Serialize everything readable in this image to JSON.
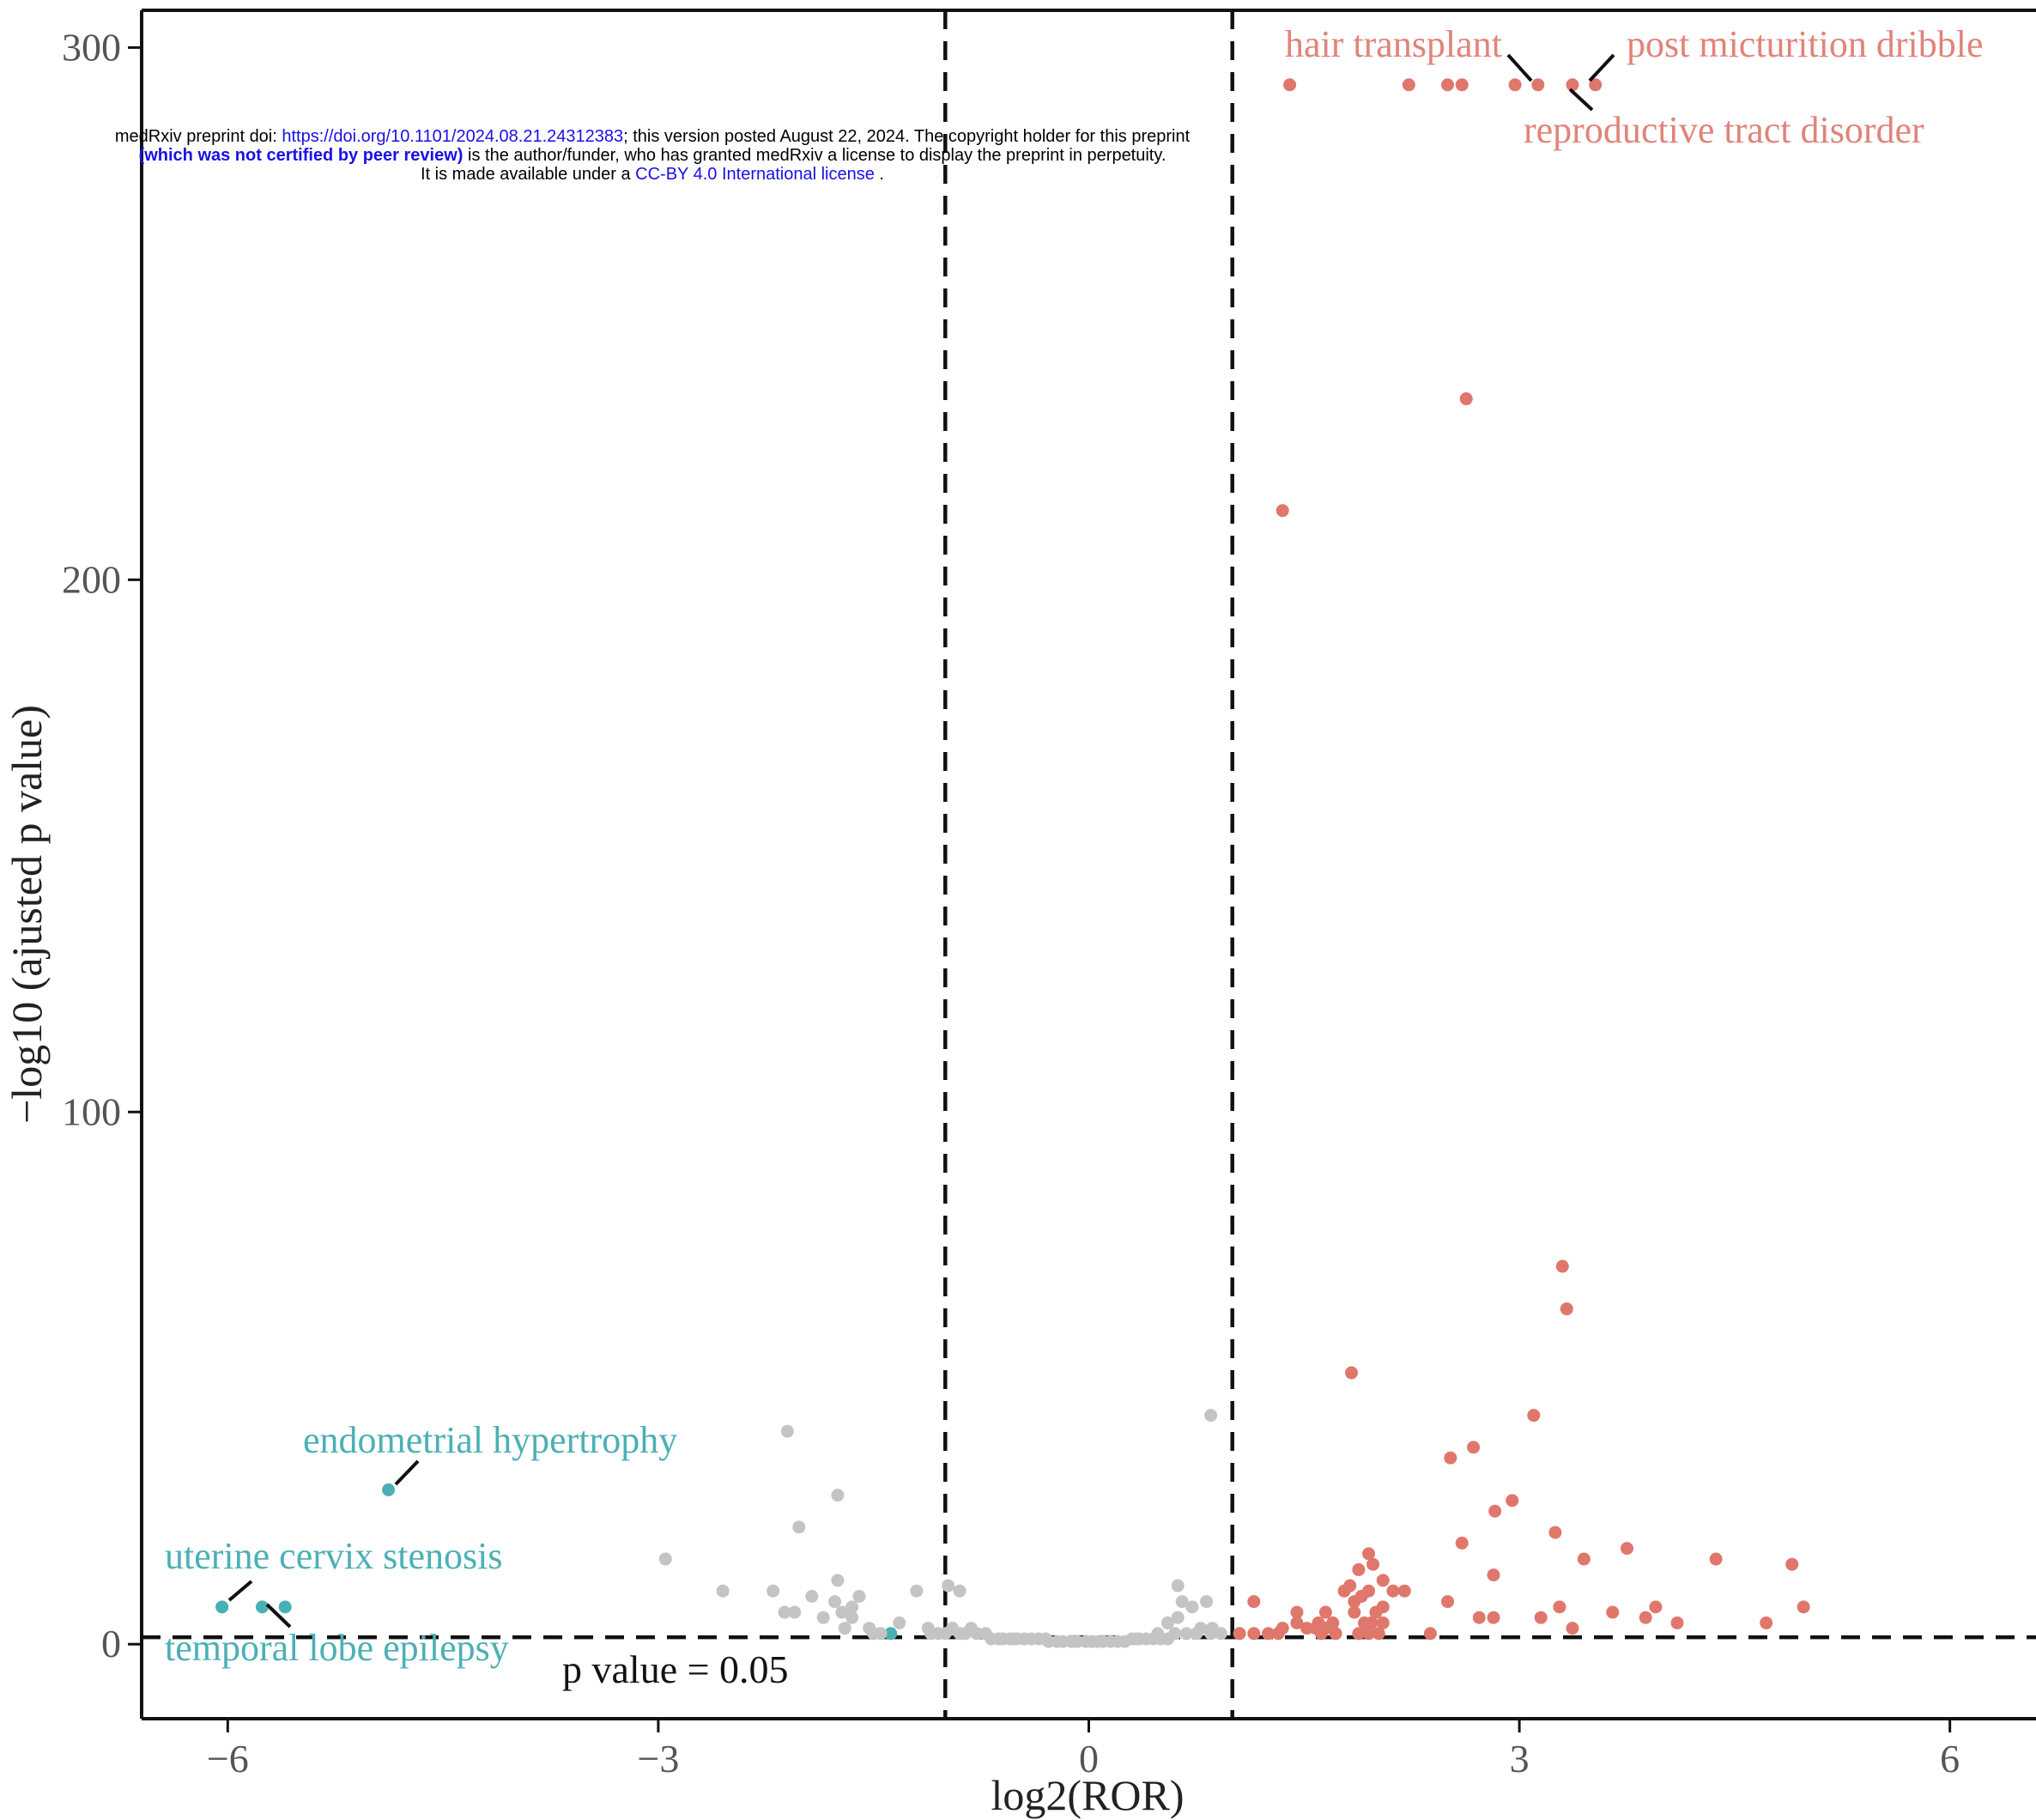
{
  "watermark": {
    "line1_pre": "medRxiv preprint doi: ",
    "line1_link": "https://doi.org/10.1101/2024.08.21.24312383",
    "line1_post": "; this version posted August 22, 2024. The copyright holder for this preprint",
    "line2_bold": "(which was not certified by peer review)",
    "line2_post": " is the author/funder, who has granted medRxiv a license to display the preprint in perpetuity.",
    "line3_pre": "It is made available under a ",
    "line3_link": "CC-BY 4.0 International license",
    "line3_post": " ."
  },
  "chart_data": {
    "type": "scatter",
    "xlabel": "log2(ROR)",
    "ylabel": "−log10 (ajusted p value)",
    "xlim": [
      -6.6,
      6.6
    ],
    "ylim": [
      -14,
      307
    ],
    "xticks": [
      -6,
      -3,
      0,
      3,
      6
    ],
    "xtick_labels": [
      "−6",
      "−3",
      "0",
      "3",
      "6"
    ],
    "yticks": [
      0,
      100,
      200,
      300
    ],
    "ytick_labels": [
      "0",
      "100",
      "200",
      "300"
    ],
    "grid": false,
    "legend": "none",
    "thresholds": {
      "vertical_x": [
        -1,
        1
      ],
      "horizontal_y": 1.3,
      "horizontal_label": "p value = 0.05"
    },
    "colors": {
      "up": "#e0776c",
      "down": "#4bb0b5",
      "ns": "#c4c4c4",
      "line": "#111111",
      "axis_text": "#555555"
    },
    "series": [
      {
        "group": "up",
        "points": [
          [
            1.4,
            293
          ],
          [
            2.23,
            293
          ],
          [
            2.5,
            293
          ],
          [
            2.6,
            293
          ],
          [
            2.97,
            293
          ],
          [
            3.13,
            293
          ],
          [
            3.37,
            293
          ],
          [
            3.53,
            293
          ],
          [
            2.63,
            234
          ],
          [
            1.35,
            213
          ],
          [
            3.3,
            71
          ],
          [
            3.33,
            63
          ],
          [
            1.83,
            51
          ],
          [
            3.1,
            43
          ],
          [
            2.68,
            37
          ],
          [
            2.52,
            35
          ],
          [
            2.95,
            27
          ],
          [
            2.83,
            25
          ],
          [
            3.25,
            21
          ],
          [
            2.6,
            19
          ],
          [
            3.75,
            18
          ],
          [
            3.45,
            16
          ],
          [
            4.37,
            16
          ],
          [
            4.9,
            15
          ],
          [
            1.95,
            17
          ],
          [
            1.88,
            14
          ],
          [
            1.98,
            15
          ],
          [
            2.82,
            13
          ],
          [
            2.05,
            12
          ],
          [
            1.82,
            11
          ],
          [
            1.78,
            10
          ],
          [
            1.95,
            10
          ],
          [
            2.12,
            10
          ],
          [
            2.2,
            10
          ],
          [
            1.9,
            9
          ],
          [
            2.5,
            8
          ],
          [
            1.85,
            8
          ],
          [
            2.05,
            7
          ],
          [
            1.15,
            8
          ],
          [
            1.65,
            6
          ],
          [
            3.28,
            7
          ],
          [
            3.95,
            7
          ],
          [
            4.98,
            7
          ],
          [
            1.45,
            6
          ],
          [
            1.85,
            6
          ],
          [
            2.0,
            6
          ],
          [
            3.65,
            6
          ],
          [
            3.88,
            5
          ],
          [
            2.72,
            5
          ],
          [
            2.82,
            5
          ],
          [
            3.15,
            5
          ],
          [
            1.45,
            4
          ],
          [
            1.6,
            4
          ],
          [
            1.7,
            4
          ],
          [
            1.92,
            4
          ],
          [
            1.97,
            4
          ],
          [
            2.05,
            4
          ],
          [
            4.1,
            4
          ],
          [
            4.72,
            4
          ],
          [
            1.35,
            3
          ],
          [
            1.52,
            3
          ],
          [
            1.58,
            3
          ],
          [
            1.65,
            3
          ],
          [
            3.37,
            3
          ],
          [
            1.25,
            2
          ],
          [
            1.32,
            2
          ],
          [
            1.88,
            2
          ],
          [
            1.95,
            2
          ],
          [
            2.02,
            2
          ],
          [
            2.38,
            2
          ],
          [
            1.05,
            2
          ],
          [
            1.15,
            2
          ],
          [
            1.62,
            2
          ],
          [
            1.72,
            2
          ]
        ]
      },
      {
        "group": "down",
        "points": [
          [
            -4.88,
            29
          ],
          [
            -6.04,
            7
          ],
          [
            -5.76,
            7
          ],
          [
            -5.6,
            7
          ],
          [
            -1.38,
            2
          ]
        ]
      },
      {
        "group": "ns",
        "points": [
          [
            -2.1,
            40
          ],
          [
            0.85,
            43
          ],
          [
            -1.75,
            28
          ],
          [
            -2.02,
            22
          ],
          [
            -2.95,
            16
          ],
          [
            -1.75,
            12
          ],
          [
            -2.55,
            10
          ],
          [
            -2.2,
            10
          ],
          [
            -1.2,
            10
          ],
          [
            -0.98,
            11
          ],
          [
            0.62,
            11
          ],
          [
            -1.93,
            9
          ],
          [
            -1.6,
            9
          ],
          [
            -0.9,
            10
          ],
          [
            -2.12,
            6
          ],
          [
            -1.77,
            8
          ],
          [
            -1.72,
            6
          ],
          [
            -1.65,
            5
          ],
          [
            -2.05,
            6
          ],
          [
            -1.65,
            7
          ],
          [
            -1.85,
            5
          ],
          [
            -1.53,
            3
          ],
          [
            -1.32,
            4
          ],
          [
            -1.12,
            3
          ],
          [
            -0.95,
            3
          ],
          [
            -0.82,
            3
          ],
          [
            0.65,
            8
          ],
          [
            0.72,
            7
          ],
          [
            0.82,
            8
          ],
          [
            0.55,
            4
          ],
          [
            0.62,
            5
          ],
          [
            0.78,
            3
          ],
          [
            0.86,
            3
          ],
          [
            -1.7,
            3
          ],
          [
            -1.5,
            2
          ],
          [
            -1.45,
            2
          ],
          [
            -1.1,
            2
          ],
          [
            -1.05,
            2
          ],
          [
            -1.0,
            2
          ],
          [
            -0.9,
            2
          ],
          [
            -0.86,
            2
          ],
          [
            -0.78,
            2
          ],
          [
            -0.72,
            2
          ],
          [
            -0.68,
            1
          ],
          [
            -0.6,
            1
          ],
          [
            -0.55,
            1
          ],
          [
            -0.5,
            1
          ],
          [
            -0.45,
            1
          ],
          [
            -0.4,
            1
          ],
          [
            -0.35,
            1
          ],
          [
            -0.3,
            1
          ],
          [
            -0.28,
            0.5
          ],
          [
            -0.22,
            0.5
          ],
          [
            -0.18,
            0.5
          ],
          [
            -0.12,
            0.5
          ],
          [
            -0.08,
            0.5
          ],
          [
            -0.02,
            0.5
          ],
          [
            0.02,
            0.5
          ],
          [
            0.06,
            0.5
          ],
          [
            0.1,
            0.5
          ],
          [
            0.15,
            0.5
          ],
          [
            0.2,
            0.5
          ],
          [
            0.25,
            0.5
          ],
          [
            0.3,
            1
          ],
          [
            0.35,
            1
          ],
          [
            0.4,
            1
          ],
          [
            0.45,
            1
          ],
          [
            0.5,
            1
          ],
          [
            0.55,
            1
          ],
          [
            0.6,
            2
          ],
          [
            0.68,
            2
          ],
          [
            0.75,
            2
          ],
          [
            0.85,
            2
          ],
          [
            0.92,
            2
          ],
          [
            -0.63,
            1
          ],
          [
            -0.52,
            1
          ],
          [
            0.33,
            1
          ],
          [
            0.48,
            2
          ]
        ]
      }
    ],
    "annotations": [
      {
        "text": "hair transplant",
        "group": "up",
        "point": [
          3.13,
          293
        ]
      },
      {
        "text": "post micturition dribble",
        "group": "up",
        "point": [
          3.53,
          293
        ]
      },
      {
        "text": "reproductive tract disorder",
        "group": "up",
        "point": [
          3.37,
          293
        ]
      },
      {
        "text": "endometrial hypertrophy",
        "group": "down",
        "point": [
          -4.88,
          29
        ]
      },
      {
        "text": "uterine cervix stenosis",
        "group": "down",
        "point": [
          -6.04,
          7
        ]
      },
      {
        "text": "temporal lobe epilepsy",
        "group": "down",
        "point": [
          -5.76,
          7
        ]
      }
    ]
  }
}
